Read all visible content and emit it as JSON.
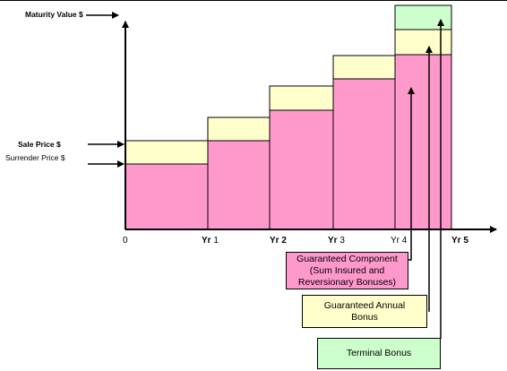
{
  "labels": {
    "maturity": "Maturity Value $",
    "sale": "Sale Price $",
    "surrender": "Surrender  Price $"
  },
  "x_ticks": [
    {
      "text": "0",
      "bold": false
    },
    {
      "text": "Yr 1",
      "bold_part": "Yr",
      "rest": " 1"
    },
    {
      "text": "Yr 2",
      "bold_part": "Yr 2",
      "rest": ""
    },
    {
      "text": "Yr 3",
      "bold_part": "Yr",
      "rest": " 3"
    },
    {
      "text": "Yr 4",
      "bold_part": "",
      "rest": "Yr 4"
    },
    {
      "text": "Yr 5",
      "bold_part": "Yr 5",
      "rest": ""
    }
  ],
  "callouts": {
    "guaranteed_line1": "Guaranteed Component",
    "guaranteed_line2": "(Sum Insured and",
    "guaranteed_line3": "Reversionary Bonuses)",
    "annual_line1": "Guaranteed Annual",
    "annual_line2": "Bonus",
    "terminal": "Terminal Bonus"
  },
  "colors": {
    "guaranteed": "#ff99cc",
    "annual": "#ffffcc",
    "terminal": "#ccffcc"
  }
}
